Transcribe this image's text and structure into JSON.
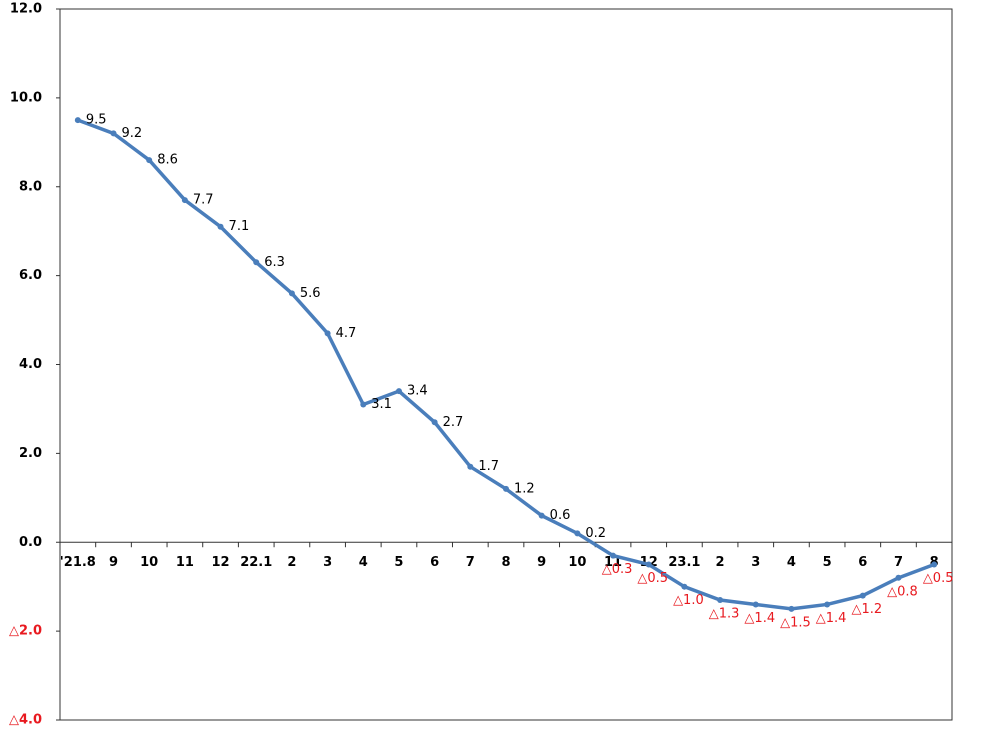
{
  "chart_data": {
    "type": "line",
    "categories": [
      "'21.8",
      "9",
      "10",
      "11",
      "12",
      "22.1",
      "2",
      "3",
      "4",
      "5",
      "6",
      "7",
      "8",
      "9",
      "10",
      "11",
      "12",
      "23.1",
      "2",
      "3",
      "4",
      "5",
      "6",
      "7",
      "8"
    ],
    "series": [
      {
        "color": "#4a7ebb",
        "values": [
          9.5,
          9.2,
          8.6,
          7.7,
          7.1,
          6.3,
          5.6,
          4.7,
          3.1,
          3.4,
          2.7,
          1.7,
          1.2,
          0.6,
          0.2,
          -0.3,
          -0.5,
          -1.0,
          -1.3,
          -1.4,
          -1.5,
          -1.4,
          -1.2,
          -0.8,
          -0.5
        ],
        "value_labels": [
          "9.5",
          "9.2",
          "8.6",
          "7.7",
          "7.1",
          "6.3",
          "5.6",
          "4.7",
          "3.1",
          "3.4",
          "2.7",
          "1.7",
          "1.2",
          "0.6",
          "0.2",
          "△0.3",
          "△0.5",
          "△1.0",
          "△1.3",
          "△1.4",
          "△1.5",
          "△1.4",
          "△1.2",
          "△0.8",
          "△0.5"
        ]
      }
    ],
    "ylim": [
      -4,
      12
    ],
    "yticks": [
      {
        "value": 12,
        "label": "12.0"
      },
      {
        "value": 10,
        "label": "10.0"
      },
      {
        "value": 8,
        "label": "8.0"
      },
      {
        "value": 6,
        "label": "6.0"
      },
      {
        "value": 4,
        "label": "4.0"
      },
      {
        "value": 2,
        "label": "2.0"
      },
      {
        "value": 0,
        "label": "0.0"
      },
      {
        "value": -2,
        "label": "△2.0"
      },
      {
        "value": -4,
        "label": "△4.0"
      }
    ],
    "negative_color": "#e8191f"
  }
}
